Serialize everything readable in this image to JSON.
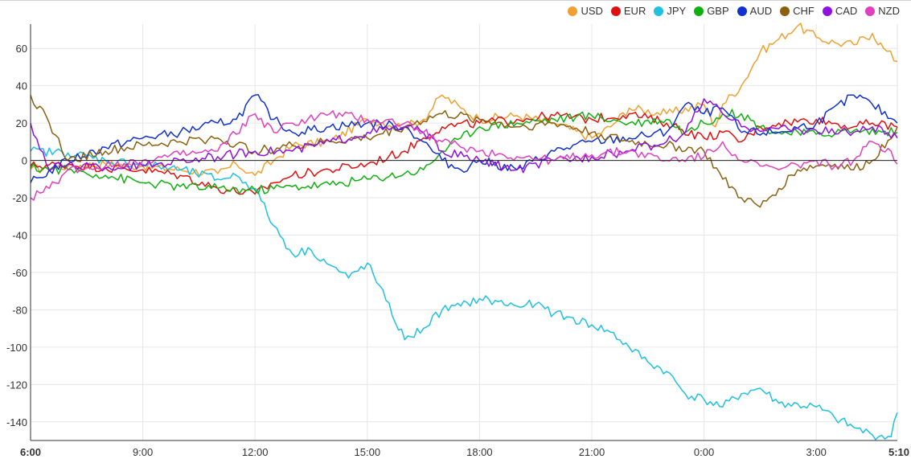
{
  "chart_data": {
    "type": "line",
    "title": "",
    "xlabel": "",
    "ylabel": "",
    "x_ticks": [
      "6:00",
      "9:00",
      "12:00",
      "15:00",
      "18:00",
      "21:00",
      "0:00",
      "3:00",
      "5:10"
    ],
    "x_tick_hours": [
      0,
      3,
      6,
      9,
      12,
      15,
      18,
      21,
      23.1667
    ],
    "x_range_hours": [
      0,
      23.1667
    ],
    "y_ticks": [
      60,
      40,
      20,
      0,
      -20,
      -40,
      -60,
      -80,
      -100,
      -120,
      -140
    ],
    "ylim": [
      -150,
      73
    ],
    "grid": true,
    "legend_position": "top-right",
    "series": [
      {
        "name": "USD",
        "color": "#f0a030",
        "points": [
          [
            0,
            -5
          ],
          [
            1,
            -3
          ],
          [
            2,
            -2
          ],
          [
            3,
            -3
          ],
          [
            4,
            -5
          ],
          [
            5,
            -7
          ],
          [
            5.5,
            -2
          ],
          [
            6,
            -8
          ],
          [
            6.5,
            0
          ],
          [
            7,
            8
          ],
          [
            8,
            10
          ],
          [
            9,
            22
          ],
          [
            10,
            18
          ],
          [
            10.5,
            22
          ],
          [
            11,
            35
          ],
          [
            11.5,
            28
          ],
          [
            12,
            22
          ],
          [
            13,
            24
          ],
          [
            14,
            20
          ],
          [
            15,
            12
          ],
          [
            15.5,
            18
          ],
          [
            16,
            28
          ],
          [
            17,
            25
          ],
          [
            18,
            30
          ],
          [
            18.3,
            18
          ],
          [
            18.5,
            30
          ],
          [
            19,
            40
          ],
          [
            19.5,
            58
          ],
          [
            20,
            65
          ],
          [
            20.5,
            72
          ],
          [
            21,
            66
          ],
          [
            21.5,
            63
          ],
          [
            22,
            62
          ],
          [
            22.5,
            68
          ],
          [
            22.8,
            60
          ],
          [
            23.1667,
            53
          ]
        ]
      },
      {
        "name": "EUR",
        "color": "#e01010",
        "points": [
          [
            0,
            -3
          ],
          [
            1,
            -2
          ],
          [
            2,
            -4
          ],
          [
            3,
            -5
          ],
          [
            4,
            -8
          ],
          [
            5,
            -15
          ],
          [
            6,
            -18
          ],
          [
            6.5,
            -12
          ],
          [
            7,
            -8
          ],
          [
            8,
            -5
          ],
          [
            9,
            -2
          ],
          [
            10,
            5
          ],
          [
            10.5,
            12
          ],
          [
            11,
            18
          ],
          [
            12,
            20
          ],
          [
            13,
            22
          ],
          [
            14,
            24
          ],
          [
            15,
            22
          ],
          [
            16,
            25
          ],
          [
            17,
            20
          ],
          [
            18,
            12
          ],
          [
            18.5,
            15
          ],
          [
            19,
            10
          ],
          [
            19.5,
            18
          ],
          [
            20,
            20
          ],
          [
            21,
            22
          ],
          [
            22,
            18
          ],
          [
            22.5,
            20
          ],
          [
            23.1667,
            18
          ]
        ]
      },
      {
        "name": "JPY",
        "color": "#20c0e0",
        "points": [
          [
            0,
            5
          ],
          [
            1,
            4
          ],
          [
            2,
            0
          ],
          [
            3,
            -2
          ],
          [
            4,
            -5
          ],
          [
            5,
            -10
          ],
          [
            5.5,
            -8
          ],
          [
            6,
            -15
          ],
          [
            6.5,
            -35
          ],
          [
            7,
            -50
          ],
          [
            7.5,
            -48
          ],
          [
            8,
            -56
          ],
          [
            8.5,
            -63
          ],
          [
            9,
            -55
          ],
          [
            9.5,
            -75
          ],
          [
            10,
            -96
          ],
          [
            10.5,
            -90
          ],
          [
            11,
            -80
          ],
          [
            11.5,
            -78
          ],
          [
            12,
            -74
          ],
          [
            13,
            -78
          ],
          [
            13.5,
            -77
          ],
          [
            14,
            -82
          ],
          [
            15,
            -88
          ],
          [
            15.5,
            -92
          ],
          [
            16,
            -100
          ],
          [
            16.5,
            -108
          ],
          [
            17,
            -113
          ],
          [
            17.5,
            -125
          ],
          [
            18,
            -128
          ],
          [
            18.5,
            -132
          ],
          [
            19,
            -125
          ],
          [
            19.5,
            -122
          ],
          [
            20,
            -130
          ],
          [
            21,
            -132
          ],
          [
            21.5,
            -138
          ],
          [
            22,
            -143
          ],
          [
            22.5,
            -147
          ],
          [
            23,
            -148
          ],
          [
            23.1667,
            -135
          ]
        ]
      },
      {
        "name": "GBP",
        "color": "#10b010",
        "points": [
          [
            0,
            -4
          ],
          [
            1,
            -5
          ],
          [
            2,
            -8
          ],
          [
            3,
            -12
          ],
          [
            4,
            -14
          ],
          [
            5,
            -15
          ],
          [
            6,
            -16
          ],
          [
            7,
            -14
          ],
          [
            8,
            -13
          ],
          [
            9,
            -10
          ],
          [
            10,
            -7
          ],
          [
            10.5,
            -5
          ],
          [
            11,
            5
          ],
          [
            11.5,
            12
          ],
          [
            12,
            18
          ],
          [
            13,
            20
          ],
          [
            14,
            22
          ],
          [
            15,
            24
          ],
          [
            16,
            20
          ],
          [
            17,
            22
          ],
          [
            17.5,
            15
          ],
          [
            18,
            20
          ],
          [
            18.5,
            25
          ],
          [
            19,
            25
          ],
          [
            19.5,
            18
          ],
          [
            20,
            15
          ],
          [
            21,
            14
          ],
          [
            22,
            16
          ],
          [
            23.1667,
            15
          ]
        ]
      },
      {
        "name": "AUD",
        "color": "#1030d0",
        "points": [
          [
            0,
            -12
          ],
          [
            1,
            0
          ],
          [
            2,
            7
          ],
          [
            3,
            12
          ],
          [
            4,
            15
          ],
          [
            5,
            20
          ],
          [
            5.5,
            22
          ],
          [
            6,
            35
          ],
          [
            6.5,
            22
          ],
          [
            7,
            15
          ],
          [
            8,
            18
          ],
          [
            9,
            20
          ],
          [
            10,
            18
          ],
          [
            10.5,
            10
          ],
          [
            11,
            0
          ],
          [
            11.5,
            -5
          ],
          [
            12,
            0
          ],
          [
            13,
            -5
          ],
          [
            14,
            5
          ],
          [
            15,
            10
          ],
          [
            16,
            12
          ],
          [
            17,
            15
          ],
          [
            17.5,
            30
          ],
          [
            18,
            25
          ],
          [
            18.5,
            28
          ],
          [
            19,
            15
          ],
          [
            20,
            15
          ],
          [
            21,
            20
          ],
          [
            22,
            35
          ],
          [
            22.5,
            30
          ],
          [
            23.1667,
            20
          ]
        ]
      },
      {
        "name": "CHF",
        "color": "#8b6010",
        "points": [
          [
            0,
            35
          ],
          [
            0.5,
            20
          ],
          [
            1,
            0
          ],
          [
            2,
            5
          ],
          [
            3,
            8
          ],
          [
            4,
            10
          ],
          [
            5,
            12
          ],
          [
            6,
            5
          ],
          [
            7,
            8
          ],
          [
            8,
            10
          ],
          [
            9,
            12
          ],
          [
            10,
            18
          ],
          [
            11,
            25
          ],
          [
            12,
            22
          ],
          [
            13,
            18
          ],
          [
            14,
            20
          ],
          [
            15,
            15
          ],
          [
            16,
            10
          ],
          [
            17,
            8
          ],
          [
            18,
            5
          ],
          [
            18.5,
            -10
          ],
          [
            19,
            -20
          ],
          [
            19.5,
            -25
          ],
          [
            20,
            -15
          ],
          [
            20.5,
            -5
          ],
          [
            21,
            -3
          ],
          [
            21.5,
            -2
          ],
          [
            22,
            -5
          ],
          [
            22.5,
            0
          ],
          [
            23.1667,
            18
          ]
        ]
      },
      {
        "name": "CAD",
        "color": "#9010e0",
        "points": [
          [
            0,
            20
          ],
          [
            0.5,
            -5
          ],
          [
            1,
            -2
          ],
          [
            2,
            -4
          ],
          [
            3,
            -3
          ],
          [
            4,
            0
          ],
          [
            5,
            2
          ],
          [
            6,
            5
          ],
          [
            7,
            5
          ],
          [
            8,
            10
          ],
          [
            9,
            15
          ],
          [
            10,
            18
          ],
          [
            10.5,
            15
          ],
          [
            11,
            5
          ],
          [
            12,
            0
          ],
          [
            13,
            -5
          ],
          [
            14,
            0
          ],
          [
            15,
            2
          ],
          [
            16,
            5
          ],
          [
            17,
            10
          ],
          [
            17.5,
            15
          ],
          [
            18,
            33
          ],
          [
            18.5,
            25
          ],
          [
            19,
            18
          ],
          [
            20,
            17
          ],
          [
            21,
            16
          ],
          [
            22,
            15
          ],
          [
            22.5,
            18
          ],
          [
            23.1667,
            12
          ]
        ]
      },
      {
        "name": "NZD",
        "color": "#e040c0",
        "points": [
          [
            0,
            -20
          ],
          [
            0.5,
            -15
          ],
          [
            1,
            -5
          ],
          [
            2,
            -3
          ],
          [
            3,
            0
          ],
          [
            4,
            3
          ],
          [
            5,
            5
          ],
          [
            6,
            25
          ],
          [
            6.5,
            15
          ],
          [
            7,
            20
          ],
          [
            8,
            25
          ],
          [
            9,
            22
          ],
          [
            10,
            20
          ],
          [
            10.5,
            15
          ],
          [
            11,
            10
          ],
          [
            12,
            5
          ],
          [
            13,
            2
          ],
          [
            14,
            0
          ],
          [
            15,
            3
          ],
          [
            16,
            5
          ],
          [
            17,
            0
          ],
          [
            18,
            2
          ],
          [
            18.5,
            10
          ],
          [
            19,
            0
          ],
          [
            19.5,
            -3
          ],
          [
            20,
            -5
          ],
          [
            21,
            0
          ],
          [
            21.5,
            -3
          ],
          [
            22,
            0
          ],
          [
            22.5,
            10
          ],
          [
            23,
            5
          ],
          [
            23.1667,
            -2
          ]
        ]
      }
    ]
  }
}
